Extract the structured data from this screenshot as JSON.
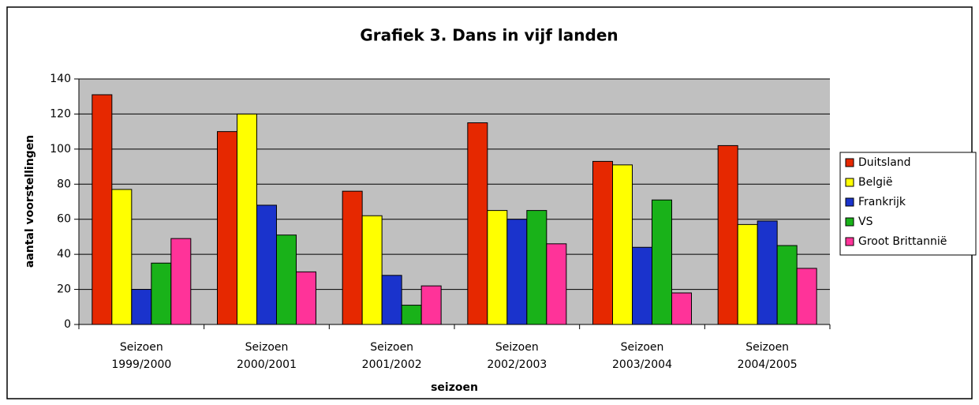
{
  "chart_data": {
    "type": "bar",
    "title": "Grafiek 3. Dans in vijf landen",
    "x_label": "seizoen",
    "y_label": "aantal voorstellingen",
    "categories": [
      [
        "Seizoen",
        "1999/2000"
      ],
      [
        "Seizoen",
        "2000/2001"
      ],
      [
        "Seizoen",
        "2001/2002"
      ],
      [
        "Seizoen",
        "2002/2003"
      ],
      [
        "Seizoen",
        "2003/2004"
      ],
      [
        "Seizoen",
        "2004/2005"
      ]
    ],
    "series": [
      {
        "name": "Duitsland",
        "color": "#e62800",
        "values": [
          131,
          110,
          76,
          115,
          93,
          102
        ]
      },
      {
        "name": "België",
        "color": "#ffff00",
        "values": [
          77,
          120,
          62,
          65,
          91,
          57
        ]
      },
      {
        "name": "Frankrijk",
        "color": "#1a33cc",
        "values": [
          20,
          68,
          28,
          60,
          44,
          59
        ]
      },
      {
        "name": "VS",
        "color": "#19b219",
        "values": [
          35,
          51,
          11,
          65,
          71,
          45
        ]
      },
      {
        "name": "Groot Brittannië",
        "color": "#ff3399",
        "values": [
          49,
          30,
          22,
          46,
          18,
          32
        ]
      }
    ],
    "ylim": [
      0,
      140
    ],
    "yticks": [
      0,
      20,
      40,
      60,
      80,
      100,
      120,
      140
    ],
    "grid": true,
    "legend": "right"
  }
}
